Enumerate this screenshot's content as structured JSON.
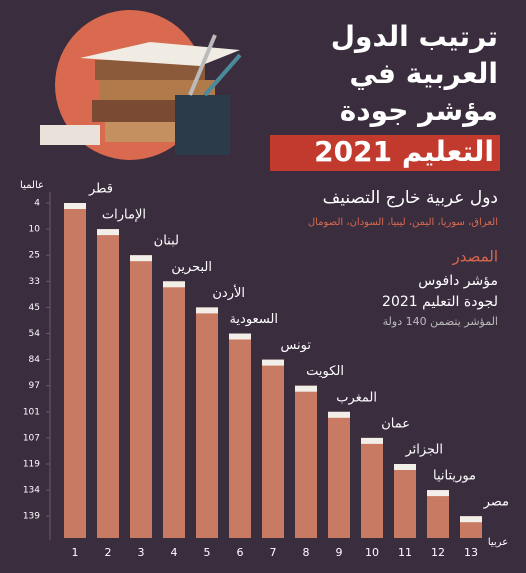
{
  "chart_data": {
    "type": "bar",
    "title_lines": [
      "ترتيب الدول",
      "العربية في",
      "مؤشر جودة",
      "التعليم 2021"
    ],
    "subtitle": "دول عربية خارج التصنيف",
    "unranked_note": "العراق، سوريا، اليمن، ليبيا، السودان، الصومال",
    "source_heading": "المصدر",
    "source_lines": [
      "مؤشر دافوس",
      "لجودة التعليم 2021"
    ],
    "source_note": "المؤشر يتضمن 140 دولة",
    "y_label": "عالميا",
    "x_label": "عربيا",
    "categories": [
      "قطر",
      "الإمارات",
      "لبنان",
      "البحرين",
      "الأردن",
      "السعودية",
      "تونس",
      "الكويت",
      "المغرب",
      "عمان",
      "الجزائر",
      "موريتانيا",
      "مصر"
    ],
    "x_ticks": [
      1,
      2,
      3,
      4,
      5,
      6,
      7,
      8,
      9,
      10,
      11,
      12,
      13
    ],
    "values": [
      4,
      10,
      25,
      33,
      45,
      54,
      84,
      97,
      101,
      107,
      119,
      134,
      139
    ],
    "yticks": [
      4,
      10,
      25,
      33,
      45,
      54,
      84,
      97,
      101,
      107,
      119,
      134,
      139
    ],
    "color": "#c97a62"
  }
}
